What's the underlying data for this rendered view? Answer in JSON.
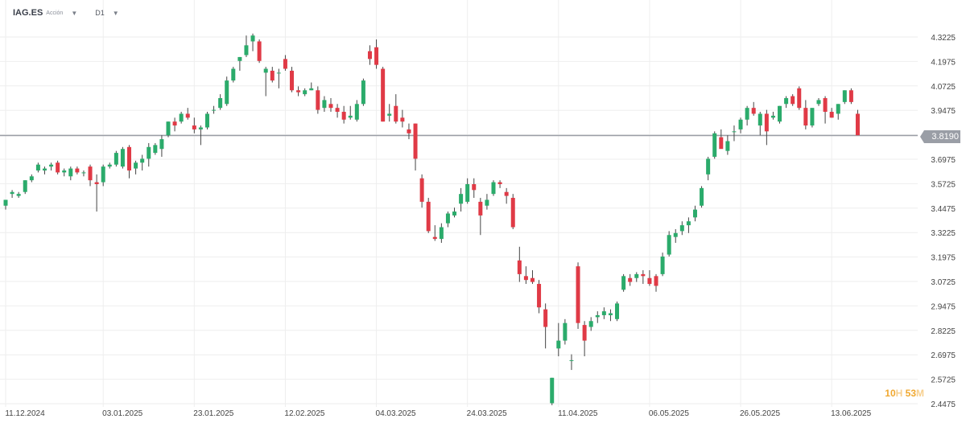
{
  "header": {
    "symbol": "IAG.ES",
    "subtitle": "Acción",
    "timeframe": "D1",
    "dropdown_icon": "triangle-down-icon"
  },
  "countdown": {
    "hours": "10",
    "h_unit": "H",
    "minutes": "53",
    "m_unit": "M"
  },
  "colors": {
    "up": "#2bab6b",
    "down": "#e03a46",
    "grid": "#eeeeee",
    "axis_text": "#444444",
    "price_line": "#9a9ea6"
  },
  "chart_data": {
    "type": "candlestick",
    "title": "",
    "current_price": 3.819,
    "current_price_label": "3.8190",
    "y_ticks": [
      "4.3225",
      "4.1975",
      "4.0725",
      "3.9475",
      "3.8225",
      "3.6975",
      "3.5725",
      "3.4475",
      "3.3225",
      "3.1975",
      "3.0725",
      "2.9475",
      "2.8225",
      "2.6975",
      "2.5725",
      "2.4475"
    ],
    "x_ticks": [
      {
        "index": 0,
        "label": "11.12.2024"
      },
      {
        "index": 15,
        "label": "03.01.2025"
      },
      {
        "index": 29,
        "label": "23.01.2025"
      },
      {
        "index": 43,
        "label": "12.02.2025"
      },
      {
        "index": 57,
        "label": "04.03.2025"
      },
      {
        "index": 71,
        "label": "24.03.2025"
      },
      {
        "index": 85,
        "label": "11.04.2025"
      },
      {
        "index": 99,
        "label": "06.05.2025"
      },
      {
        "index": 113,
        "label": "26.05.2025"
      },
      {
        "index": 127,
        "label": "13.06.2025"
      }
    ],
    "ylim": [
      2.4475,
      4.3225
    ],
    "candles": [
      [
        3.46,
        3.49,
        3.44,
        3.49
      ],
      [
        3.52,
        3.54,
        3.5,
        3.53
      ],
      [
        3.51,
        3.53,
        3.5,
        3.52
      ],
      [
        3.53,
        3.59,
        3.52,
        3.59
      ],
      [
        3.59,
        3.62,
        3.58,
        3.61
      ],
      [
        3.64,
        3.68,
        3.63,
        3.67
      ],
      [
        3.64,
        3.66,
        3.62,
        3.65
      ],
      [
        3.66,
        3.68,
        3.64,
        3.67
      ],
      [
        3.68,
        3.69,
        3.62,
        3.63
      ],
      [
        3.63,
        3.65,
        3.61,
        3.64
      ],
      [
        3.61,
        3.66,
        3.59,
        3.65
      ],
      [
        3.65,
        3.66,
        3.62,
        3.63
      ],
      [
        3.63,
        3.64,
        3.61,
        3.63
      ],
      [
        3.66,
        3.67,
        3.56,
        3.59
      ],
      [
        3.58,
        3.62,
        3.43,
        3.57
      ],
      [
        3.58,
        3.67,
        3.56,
        3.66
      ],
      [
        3.66,
        3.68,
        3.65,
        3.67
      ],
      [
        3.67,
        3.74,
        3.66,
        3.73
      ],
      [
        3.66,
        3.76,
        3.65,
        3.75
      ],
      [
        3.76,
        3.77,
        3.6,
        3.64
      ],
      [
        3.65,
        3.69,
        3.62,
        3.68
      ],
      [
        3.68,
        3.72,
        3.64,
        3.7
      ],
      [
        3.7,
        3.78,
        3.66,
        3.76
      ],
      [
        3.73,
        3.78,
        3.72,
        3.77
      ],
      [
        3.75,
        3.82,
        3.71,
        3.8
      ],
      [
        3.82,
        3.89,
        3.81,
        3.89
      ],
      [
        3.89,
        3.91,
        3.84,
        3.87
      ],
      [
        3.89,
        3.94,
        3.88,
        3.93
      ],
      [
        3.93,
        3.96,
        3.9,
        3.91
      ],
      [
        3.87,
        3.91,
        3.83,
        3.85
      ],
      [
        3.85,
        3.87,
        3.77,
        3.86
      ],
      [
        3.86,
        3.94,
        3.85,
        3.93
      ],
      [
        3.95,
        3.97,
        3.93,
        3.95
      ],
      [
        3.96,
        4.03,
        3.95,
        4.01
      ],
      [
        3.98,
        4.12,
        3.97,
        4.1
      ],
      [
        4.1,
        4.17,
        4.09,
        4.16
      ],
      [
        4.2,
        4.22,
        4.15,
        4.22
      ],
      [
        4.23,
        4.33,
        4.22,
        4.28
      ],
      [
        4.3,
        4.34,
        4.25,
        4.33
      ],
      [
        4.3,
        4.31,
        4.19,
        4.2
      ],
      [
        4.14,
        4.17,
        4.02,
        4.16
      ],
      [
        4.15,
        4.17,
        4.09,
        4.1
      ],
      [
        4.14,
        4.16,
        4.06,
        4.14
      ],
      [
        4.21,
        4.23,
        4.15,
        4.16
      ],
      [
        4.15,
        4.17,
        4.04,
        4.05
      ],
      [
        4.05,
        4.07,
        4.02,
        4.04
      ],
      [
        4.03,
        4.06,
        4.02,
        4.05
      ],
      [
        4.05,
        4.09,
        4.05,
        4.06
      ],
      [
        4.05,
        4.07,
        3.93,
        3.95
      ],
      [
        3.96,
        4.02,
        3.94,
        4.0
      ],
      [
        3.98,
        4.01,
        3.94,
        3.96
      ],
      [
        3.96,
        3.98,
        3.91,
        3.94
      ],
      [
        3.94,
        3.97,
        3.88,
        3.9
      ],
      [
        3.91,
        3.97,
        3.9,
        3.92
      ],
      [
        3.9,
        4.0,
        3.89,
        3.98
      ],
      [
        3.98,
        4.11,
        3.97,
        4.1
      ],
      [
        4.25,
        4.28,
        4.18,
        4.21
      ],
      [
        4.27,
        4.31,
        4.16,
        4.18
      ],
      [
        4.16,
        4.17,
        3.89,
        3.89
      ],
      [
        3.92,
        3.98,
        3.89,
        3.93
      ],
      [
        3.97,
        4.03,
        3.88,
        3.89
      ],
      [
        3.91,
        3.95,
        3.86,
        3.89
      ],
      [
        3.85,
        3.88,
        3.8,
        3.83
      ],
      [
        3.88,
        3.88,
        3.64,
        3.7
      ],
      [
        3.6,
        3.62,
        3.45,
        3.48
      ],
      [
        3.48,
        3.5,
        3.32,
        3.33
      ],
      [
        3.3,
        3.36,
        3.28,
        3.29
      ],
      [
        3.29,
        3.37,
        3.27,
        3.35
      ],
      [
        3.37,
        3.43,
        3.35,
        3.42
      ],
      [
        3.41,
        3.45,
        3.4,
        3.43
      ],
      [
        3.47,
        3.55,
        3.43,
        3.52
      ],
      [
        3.48,
        3.6,
        3.47,
        3.57
      ],
      [
        3.57,
        3.6,
        3.5,
        3.54
      ],
      [
        3.48,
        3.5,
        3.31,
        3.41
      ],
      [
        3.46,
        3.52,
        3.44,
        3.49
      ],
      [
        3.52,
        3.59,
        3.51,
        3.58
      ],
      [
        3.58,
        3.59,
        3.55,
        3.57
      ],
      [
        3.53,
        3.55,
        3.47,
        3.51
      ],
      [
        3.5,
        3.52,
        3.34,
        3.35
      ],
      [
        3.18,
        3.25,
        3.07,
        3.11
      ],
      [
        3.1,
        3.15,
        3.06,
        3.08
      ],
      [
        3.09,
        3.13,
        3.06,
        3.07
      ],
      [
        3.06,
        3.08,
        2.91,
        2.94
      ],
      [
        2.93,
        2.96,
        2.73,
        2.84
      ],
      [
        2.45,
        2.58,
        2.44,
        2.58
      ],
      [
        2.73,
        2.86,
        2.69,
        2.77
      ],
      [
        2.77,
        2.88,
        2.75,
        2.86
      ],
      [
        2.67,
        2.7,
        2.62,
        2.67
      ],
      [
        3.15,
        3.17,
        2.83,
        2.86
      ],
      [
        2.85,
        2.87,
        2.69,
        2.77
      ],
      [
        2.84,
        2.89,
        2.82,
        2.87
      ],
      [
        2.89,
        2.92,
        2.86,
        2.9
      ],
      [
        2.9,
        2.94,
        2.88,
        2.92
      ],
      [
        2.9,
        2.93,
        2.87,
        2.91
      ],
      [
        2.88,
        2.97,
        2.87,
        2.96
      ],
      [
        3.03,
        3.11,
        3.02,
        3.1
      ],
      [
        3.09,
        3.11,
        3.05,
        3.07
      ],
      [
        3.09,
        3.12,
        3.07,
        3.11
      ],
      [
        3.11,
        3.13,
        3.06,
        3.1
      ],
      [
        3.09,
        3.13,
        3.05,
        3.06
      ],
      [
        3.1,
        3.11,
        3.02,
        3.05
      ],
      [
        3.11,
        3.22,
        3.1,
        3.2
      ],
      [
        3.21,
        3.33,
        3.2,
        3.31
      ],
      [
        3.3,
        3.34,
        3.27,
        3.32
      ],
      [
        3.33,
        3.38,
        3.31,
        3.36
      ],
      [
        3.36,
        3.4,
        3.32,
        3.38
      ],
      [
        3.4,
        3.46,
        3.38,
        3.44
      ],
      [
        3.46,
        3.56,
        3.45,
        3.55
      ],
      [
        3.62,
        3.71,
        3.59,
        3.7
      ],
      [
        3.71,
        3.84,
        3.7,
        3.83
      ],
      [
        3.81,
        3.85,
        3.76,
        3.75
      ],
      [
        3.74,
        3.82,
        3.72,
        3.79
      ],
      [
        3.84,
        3.87,
        3.79,
        3.84
      ],
      [
        3.85,
        3.91,
        3.83,
        3.9
      ],
      [
        3.9,
        3.97,
        3.87,
        3.96
      ],
      [
        3.96,
        3.99,
        3.92,
        3.93
      ],
      [
        3.87,
        3.94,
        3.82,
        3.93
      ],
      [
        3.93,
        3.95,
        3.77,
        3.84
      ],
      [
        3.91,
        3.94,
        3.9,
        3.92
      ],
      [
        3.89,
        3.97,
        3.88,
        3.97
      ],
      [
        3.98,
        4.02,
        3.96,
        4.01
      ],
      [
        4.02,
        4.03,
        3.97,
        3.98
      ],
      [
        4.06,
        4.07,
        3.95,
        3.96
      ],
      [
        3.96,
        4.0,
        3.85,
        3.87
      ],
      [
        3.87,
        3.95,
        3.86,
        3.96
      ],
      [
        3.98,
        4.01,
        3.97,
        4.0
      ],
      [
        4.01,
        4.02,
        3.88,
        3.94
      ],
      [
        3.94,
        3.96,
        3.91,
        3.91
      ],
      [
        3.93,
        3.98,
        3.9,
        3.98
      ],
      [
        3.99,
        4.05,
        3.98,
        4.05
      ],
      [
        4.05,
        4.06,
        3.98,
        3.99
      ],
      [
        3.93,
        3.95,
        3.83,
        3.82
      ]
    ]
  }
}
